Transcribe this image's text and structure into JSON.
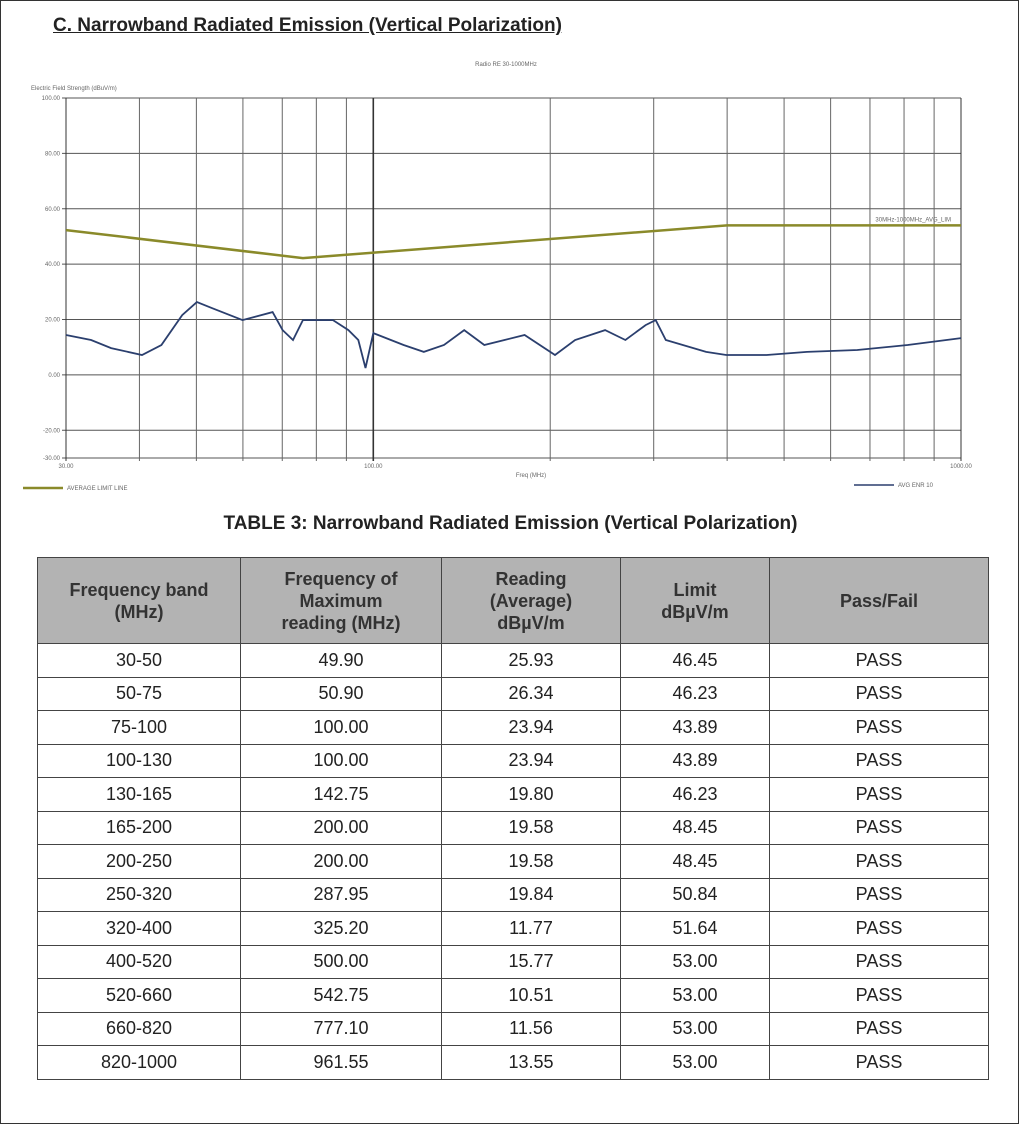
{
  "section_title": "C. Narrowband Radiated Emission (Vertical Polarization)",
  "chart_data": {
    "type": "line",
    "title": "Radio RE 30-1000MHz",
    "ylabel": "Electric Field Strength (dBuV/m)",
    "xlabel": "Freq (MHz)",
    "x_scale": "log",
    "xlim": [
      30,
      1000
    ],
    "ylim": [
      -30,
      100
    ],
    "y_ticks": [
      "100.00",
      "80.00",
      "60.00",
      "40.00",
      "20.00",
      "0.00",
      "-20.00",
      "-30.00"
    ],
    "y_tick_values": [
      100,
      80,
      60,
      40,
      20,
      0,
      -20,
      -30
    ],
    "x_ticks": [
      "30.00",
      "100.00",
      "1000.00"
    ],
    "x_tick_values": [
      30,
      100,
      1000
    ],
    "grid": true,
    "limit_annotation": "30MHz-1000MHz_AVG_LIM",
    "series": [
      {
        "name": "AVERAGE LIMIT LINE",
        "color": "#8a8a2a",
        "legend": "bottom-left",
        "x": [
          30,
          75.9,
          400,
          1000
        ],
        "y": [
          52.3,
          42.2,
          54.0,
          54.0
        ]
      },
      {
        "name": "AVG ENR 10",
        "color": "#2b3f6e",
        "legend": "bottom-right",
        "x": [
          30,
          33.1,
          35.8,
          40.4,
          43.6,
          47.3,
          50.1,
          53.2,
          59.9,
          67.4,
          70.1,
          73,
          75.9,
          85.4,
          90.7,
          94.3,
          97,
          100,
          112.6,
          121.9,
          131.9,
          142.8,
          154.5,
          167.2,
          180.9,
          203.8,
          220.5,
          248,
          268.5,
          290.6,
          302.4,
          314.6,
          368.4,
          398.7,
          466.9,
          546.9,
          666.2,
          811.3,
          1000
        ],
        "y": [
          14.4,
          12.6,
          9.7,
          7.2,
          10.8,
          21.6,
          26.3,
          24.1,
          19.8,
          22.7,
          16.2,
          12.6,
          19.8,
          19.8,
          16.2,
          12.6,
          2.5,
          15.1,
          10.8,
          8.3,
          10.8,
          16.2,
          10.8,
          12.6,
          14.4,
          7.2,
          12.6,
          16.2,
          12.6,
          18.0,
          19.8,
          12.6,
          8.3,
          7.2,
          7.2,
          8.3,
          9.0,
          10.8,
          13.3
        ]
      }
    ]
  },
  "table": {
    "title": "TABLE 3: Narrowband Radiated Emission (Vertical Polarization)",
    "headers": [
      [
        "Frequency band",
        "(MHz)"
      ],
      [
        "Frequency of",
        "Maximum",
        "reading (MHz)"
      ],
      [
        "Reading",
        "(Average)",
        "dBµV/m"
      ],
      [
        "Limit",
        "dBµV/m"
      ],
      [
        "Pass/Fail"
      ]
    ],
    "rows": [
      [
        "30-50",
        "49.90",
        "25.93",
        "46.45",
        "PASS"
      ],
      [
        "50-75",
        "50.90",
        "26.34",
        "46.23",
        "PASS"
      ],
      [
        "75-100",
        "100.00",
        "23.94",
        "43.89",
        "PASS"
      ],
      [
        "100-130",
        "100.00",
        "23.94",
        "43.89",
        "PASS"
      ],
      [
        "130-165",
        "142.75",
        "19.80",
        "46.23",
        "PASS"
      ],
      [
        "165-200",
        "200.00",
        "19.58",
        "48.45",
        "PASS"
      ],
      [
        "200-250",
        "200.00",
        "19.58",
        "48.45",
        "PASS"
      ],
      [
        "250-320",
        "287.95",
        "19.84",
        "50.84",
        "PASS"
      ],
      [
        "320-400",
        "325.20",
        "11.77",
        "51.64",
        "PASS"
      ],
      [
        "400-520",
        "500.00",
        "15.77",
        "53.00",
        "PASS"
      ],
      [
        "520-660",
        "542.75",
        "10.51",
        "53.00",
        "PASS"
      ],
      [
        "660-820",
        "777.10",
        "11.56",
        "53.00",
        "PASS"
      ],
      [
        "820-1000",
        "961.55",
        "13.55",
        "53.00",
        "PASS"
      ]
    ]
  }
}
